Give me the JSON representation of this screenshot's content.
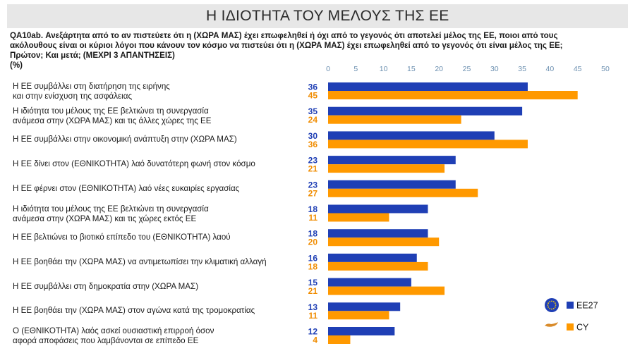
{
  "header": {
    "title": "Η ΙΔΙΟΤΗΤΑ ΤΟΥ ΜΕΛΟΥΣ ΤΗΣ ΕΕ"
  },
  "question": {
    "line1": "QA10ab. Ανεξάρτητα από το αν πιστεύετε ότι η (ΧΩΡΑ ΜΑΣ) έχει επωφεληθεί ή όχι από το γεγονός ότι αποτελεί μέλος της ΕΕ, ποιοι από τους",
    "line2": "ακόλουθους είναι οι κύριοι λόγοι που κάνουν τον κόσμο να πιστεύει ότι η (ΧΩΡΑ ΜΑΣ) έχει επωφεληθεί από το γεγονός ότι είναι μέλος της ΕΕ;",
    "line3": "Πρώτον; Και μετά; (ΜΕΧΡΙ 3 ΑΠΑΝΤΗΣΕΙΣ)",
    "unit": "(%)"
  },
  "colors": {
    "EE27": "#1f3fb5",
    "CY": "#ff9900",
    "EE27_label": "#1f3fb5",
    "CY_label": "#f08c00"
  },
  "chart_data": {
    "type": "bar",
    "orientation": "horizontal",
    "xlim": [
      0,
      50
    ],
    "ticks": [
      0,
      5,
      10,
      15,
      20,
      25,
      30,
      35,
      40,
      45,
      50
    ],
    "categories": [
      [
        "Η ΕΕ συμβάλλει στη διατήρηση της ειρήνης",
        "και στην ενίσχυση της ασφάλειας"
      ],
      [
        "Η ιδιότητα του μέλους της ΕΕ βελτιώνει τη συνεργασία",
        "ανάμεσα στην (ΧΩΡΑ ΜΑΣ) και τις άλλες χώρες της ΕΕ"
      ],
      [
        "Η ΕΕ συμβάλλει στην οικονομική ανάπτυξη στην (ΧΩΡΑ ΜΑΣ)"
      ],
      [
        "Η ΕΕ δίνει στον (ΕΘΝΙΚΟΤΗΤΑ) λαό δυνατότερη φωνή στον κόσμο"
      ],
      [
        "Η ΕΕ φέρνει στον (ΕΘΝΙΚΟΤΗΤΑ) λαό νέες ευκαιρίες εργασίας"
      ],
      [
        "Η ιδιότητα του μέλους της ΕΕ βελτιώνει τη συνεργασία",
        "ανάμεσα στην (ΧΩΡΑ ΜΑΣ) και τις χώρες εκτός ΕΕ"
      ],
      [
        "Η ΕΕ βελτιώνει το βιοτικό επίπεδο του (ΕΘΝΙΚΟΤΗΤΑ) λαού"
      ],
      [
        "Η ΕΕ βοηθάει την (ΧΩΡΑ ΜΑΣ) να αντιμετωπίσει την κλιματική αλλαγή"
      ],
      [
        "Η ΕΕ συμβάλλει στη δημοκρατία στην (ΧΩΡΑ ΜΑΣ)"
      ],
      [
        "Η ΕΕ βοηθάει την (ΧΩΡΑ ΜΑΣ) στον αγώνα κατά της τρομοκρατίας"
      ],
      [
        "Ο (ΕΘΝΙΚΟΤΗΤΑ) λαός ασκεί ουσιαστική επιρροή όσον",
        "αφορά αποφάσεις που λαμβάνονται σε επίπεδο ΕΕ"
      ]
    ],
    "series": [
      {
        "name": "EE27",
        "values": [
          36,
          35,
          30,
          23,
          23,
          18,
          18,
          16,
          15,
          13,
          12
        ]
      },
      {
        "name": "CY",
        "values": [
          45,
          24,
          36,
          21,
          27,
          11,
          20,
          18,
          21,
          11,
          4
        ]
      }
    ],
    "legend": {
      "position": "bottom-right",
      "icons": [
        "eu-flag-icon",
        "cyprus-flag-icon"
      ]
    }
  }
}
